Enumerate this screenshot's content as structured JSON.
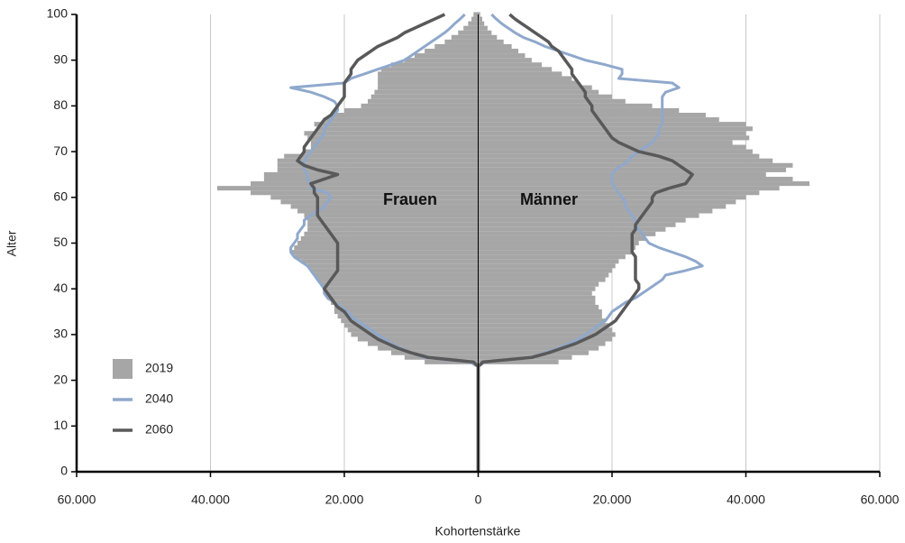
{
  "chart_data": {
    "type": "pyramid",
    "xlabel": "Kohortenstärke",
    "ylabel": "Alter",
    "groups": [
      "Frauen",
      "Männer"
    ],
    "xlim": [
      -60000,
      60000
    ],
    "xticks": [
      {
        "value": -60000,
        "label": "60.000"
      },
      {
        "value": -40000,
        "label": "40.000"
      },
      {
        "value": -20000,
        "label": "20.000"
      },
      0,
      {
        "value": 20000,
        "label": "20.000"
      },
      {
        "value": 40000,
        "label": "40.000"
      },
      {
        "value": 60000,
        "label": "60.000"
      }
    ],
    "ylim": [
      0,
      100
    ],
    "yticks": [
      0,
      10,
      20,
      30,
      40,
      50,
      60,
      70,
      80,
      90,
      100
    ],
    "grid": true,
    "legend": "lower left",
    "y": [
      0,
      1,
      2,
      3,
      4,
      5,
      6,
      7,
      8,
      9,
      10,
      11,
      12,
      13,
      14,
      15,
      16,
      17,
      18,
      19,
      20,
      21,
      22,
      23,
      24,
      25,
      26,
      27,
      28,
      29,
      30,
      31,
      32,
      33,
      34,
      35,
      36,
      37,
      38,
      39,
      40,
      41,
      42,
      43,
      44,
      45,
      46,
      47,
      48,
      49,
      50,
      51,
      52,
      53,
      54,
      55,
      56,
      57,
      58,
      59,
      60,
      61,
      62,
      63,
      64,
      65,
      66,
      67,
      68,
      69,
      70,
      71,
      72,
      73,
      74,
      75,
      76,
      77,
      78,
      79,
      80,
      81,
      82,
      83,
      84,
      85,
      86,
      87,
      88,
      89,
      90,
      91,
      92,
      93,
      94,
      95,
      96,
      97,
      98,
      99,
      100
    ],
    "series": [
      {
        "name": "2019",
        "color": "#a6a6a6",
        "style": "bar",
        "values": [
          [
            0,
            0,
            0,
            0,
            0,
            0,
            0,
            0,
            0,
            0,
            0,
            0,
            0,
            0,
            0,
            0,
            0,
            0,
            0,
            0,
            0,
            0,
            0,
            0,
            -8000,
            -11000,
            -13000,
            -15000,
            -16500,
            -18000,
            -19000,
            -19500,
            -20000,
            -20500,
            -21000,
            -21500,
            -21500,
            -22000,
            -22500,
            -23000,
            -23000,
            -23500,
            -24000,
            -24500,
            -25000,
            -25500,
            -26500,
            -27500,
            -28000,
            -27500,
            -27000,
            -26500,
            -26000,
            -25500,
            -25500,
            -25500,
            -26000,
            -27000,
            -28000,
            -29500,
            -31000,
            -34000,
            -39000,
            -34000,
            -32000,
            -32000,
            -30000,
            -30000,
            -30000,
            -29000,
            -26000,
            -25000,
            -25000,
            -25500,
            -26000,
            -24000,
            -24500,
            -23000,
            -22000,
            -20000,
            -17500,
            -16500,
            -16000,
            -15500,
            -15000,
            -15000,
            -15000,
            -15000,
            -14500,
            -13000,
            -11000,
            -9500,
            -8000,
            -6500,
            -5000,
            -4000,
            -3000,
            -2200,
            -1500,
            -1000,
            -700
          ],
          [
            0,
            0,
            0,
            0,
            0,
            0,
            0,
            0,
            0,
            0,
            0,
            0,
            0,
            0,
            0,
            0,
            0,
            0,
            0,
            0,
            0,
            0,
            0,
            0,
            12000,
            14000,
            16500,
            18000,
            19000,
            20000,
            20500,
            20000,
            19500,
            19000,
            18500,
            18500,
            18000,
            17500,
            17500,
            17000,
            17500,
            18000,
            19000,
            19500,
            20000,
            20500,
            21000,
            22000,
            23000,
            23500,
            24000,
            25000,
            26500,
            28000,
            29500,
            31000,
            33000,
            35000,
            37000,
            38500,
            40000,
            42000,
            45000,
            49500,
            47000,
            43000,
            46000,
            47000,
            44000,
            42000,
            41000,
            40000,
            38000,
            40500,
            40000,
            41000,
            40000,
            36000,
            34000,
            30000,
            26000,
            22000,
            20000,
            18000,
            17000,
            15000,
            14000,
            12500,
            11000,
            9500,
            8000,
            7000,
            6000,
            5000,
            3800,
            2800,
            2000,
            1400,
            900,
            600,
            300
          ]
        ]
      },
      {
        "name": "2040",
        "color": "#8fa8cc",
        "style": "line",
        "values": [
          [
            0,
            0,
            0,
            0,
            0,
            0,
            0,
            0,
            0,
            0,
            0,
            0,
            0,
            0,
            0,
            0,
            0,
            0,
            0,
            0,
            0,
            0,
            0,
            0,
            -1300,
            -8000,
            -10000,
            -11500,
            -13000,
            -14000,
            -15000,
            -16000,
            -17000,
            -18000,
            -19000,
            -19500,
            -20500,
            -21500,
            -22500,
            -23000,
            -23000,
            -23500,
            -24000,
            -24500,
            -25000,
            -25500,
            -26500,
            -27500,
            -28000,
            -28000,
            -27500,
            -27000,
            -27000,
            -26500,
            -26000,
            -26000,
            -25000,
            -24000,
            -23000,
            -22500,
            -22000,
            -22500,
            -25000,
            -25000,
            -25500,
            -25500,
            -26000,
            -26000,
            -26000,
            -25500,
            -25000,
            -24500,
            -24000,
            -23500,
            -23000,
            -23000,
            -22500,
            -22000,
            -21500,
            -21000,
            -21000,
            -21500,
            -23000,
            -25000,
            -28000,
            -20000,
            -19000,
            -17000,
            -15000,
            -13000,
            -11000,
            -10000,
            -9000,
            -8000,
            -7000,
            -6000,
            -5000,
            -4200,
            -3500,
            -2700,
            -2000
          ],
          [
            0,
            0,
            0,
            0,
            0,
            0,
            0,
            0,
            0,
            0,
            0,
            0,
            0,
            0,
            0,
            0,
            0,
            0,
            0,
            0,
            0,
            0,
            0,
            0,
            1000,
            8000,
            10000,
            12000,
            13500,
            15000,
            16000,
            17000,
            18000,
            19000,
            19500,
            20000,
            21000,
            22000,
            23500,
            24500,
            25500,
            26500,
            27500,
            28000,
            31000,
            33500,
            32500,
            31000,
            29000,
            27000,
            25500,
            25000,
            24500,
            24000,
            23500,
            23500,
            23000,
            22500,
            22000,
            22000,
            21500,
            21000,
            20500,
            20000,
            20000,
            20000,
            20500,
            21500,
            22500,
            23000,
            24000,
            25000,
            26000,
            26500,
            27000,
            27000,
            27500,
            27500,
            27500,
            27500,
            27500,
            27500,
            27500,
            28000,
            30000,
            29000,
            21000,
            21500,
            21500,
            19000,
            16000,
            14000,
            12000,
            10000,
            8500,
            6700,
            5500,
            4500,
            3500,
            2700,
            2000
          ]
        ]
      },
      {
        "name": "2060",
        "color": "#595959",
        "style": "line",
        "values": [
          [
            0,
            0,
            0,
            0,
            0,
            0,
            0,
            0,
            0,
            0,
            0,
            0,
            0,
            0,
            0,
            0,
            0,
            0,
            0,
            0,
            0,
            0,
            0,
            0,
            -700,
            -7500,
            -10000,
            -12000,
            -13500,
            -15000,
            -16000,
            -17000,
            -18000,
            -19000,
            -19500,
            -20000,
            -21000,
            -21500,
            -22000,
            -22500,
            -23000,
            -22500,
            -22000,
            -21500,
            -21000,
            -21000,
            -21000,
            -21000,
            -21000,
            -21000,
            -21000,
            -21500,
            -22000,
            -22500,
            -23000,
            -23500,
            -24000,
            -24000,
            -24000,
            -24000,
            -24000,
            -24500,
            -24500,
            -25000,
            -23000,
            -21000,
            -24000,
            -26000,
            -27000,
            -26500,
            -26000,
            -26000,
            -25500,
            -25000,
            -24500,
            -24000,
            -23500,
            -23000,
            -22000,
            -21500,
            -21000,
            -20500,
            -20000,
            -20000,
            -20000,
            -20000,
            -19500,
            -19000,
            -19000,
            -18500,
            -18000,
            -17000,
            -16000,
            -15000,
            -13500,
            -12000,
            -11000,
            -9500,
            -8000,
            -6500,
            -5000
          ],
          [
            0,
            0,
            0,
            0,
            0,
            0,
            0,
            0,
            0,
            0,
            0,
            0,
            0,
            0,
            0,
            0,
            0,
            0,
            0,
            0,
            0,
            0,
            0,
            0,
            700,
            8000,
            10500,
            12500,
            14500,
            16000,
            17500,
            18500,
            19500,
            20500,
            21000,
            21500,
            22000,
            22500,
            23000,
            23500,
            24000,
            24000,
            23500,
            23500,
            23500,
            23500,
            23500,
            23500,
            23000,
            23000,
            23000,
            23000,
            23000,
            23500,
            23500,
            24000,
            24500,
            25000,
            25500,
            26000,
            26000,
            26500,
            28500,
            31000,
            31500,
            32000,
            31000,
            30000,
            29000,
            27000,
            24000,
            22500,
            21000,
            20000,
            19500,
            19000,
            18500,
            18000,
            17500,
            17000,
            17000,
            16500,
            16000,
            16000,
            15500,
            15000,
            14500,
            14000,
            14000,
            13500,
            13000,
            12500,
            12000,
            11000,
            10500,
            9500,
            8500,
            7500,
            6500,
            5500,
            4700
          ]
        ]
      }
    ]
  }
}
